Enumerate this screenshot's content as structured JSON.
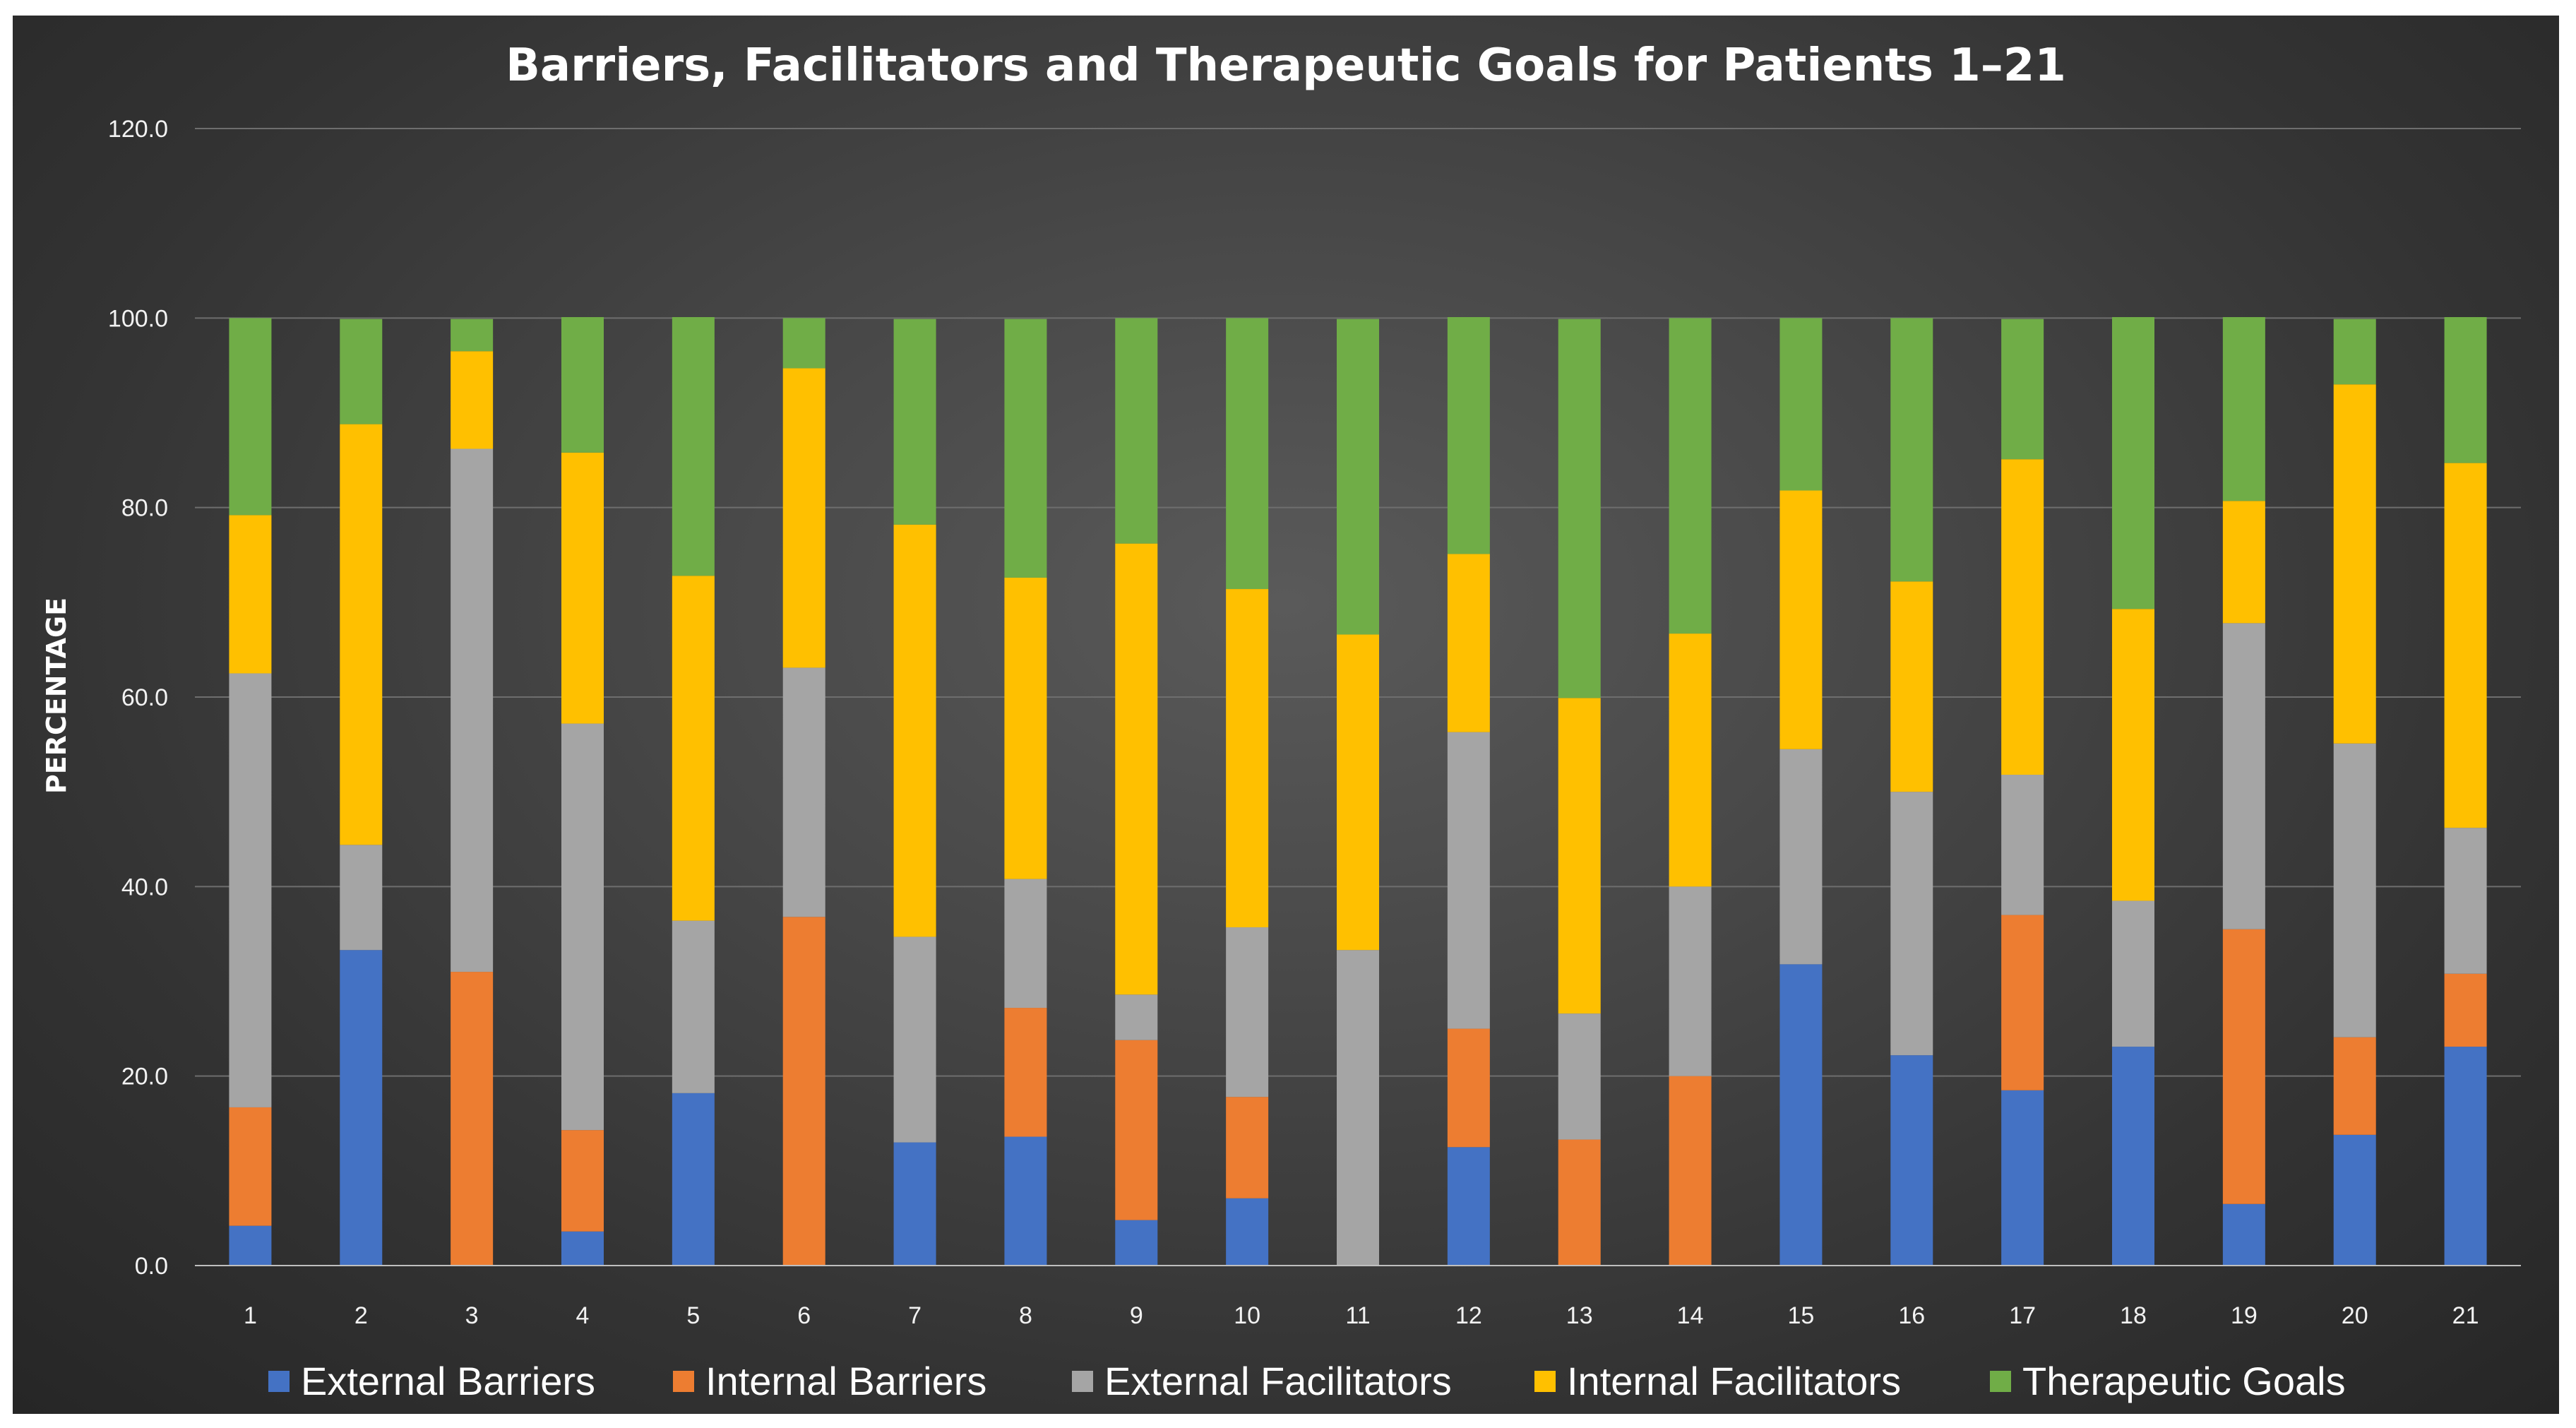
{
  "chart_data": {
    "type": "bar",
    "stacked": true,
    "title": "Barriers, Facilitators and Therapeutic Goals for Patients 1–21",
    "xlabel": "",
    "ylabel": "PERCENTAGE",
    "ylim": [
      0,
      120
    ],
    "yticks": [
      "0.0",
      "20.0",
      "40.0",
      "60.0",
      "80.0",
      "100.0",
      "120.0"
    ],
    "categories": [
      "1",
      "2",
      "3",
      "4",
      "5",
      "6",
      "7",
      "8",
      "9",
      "10",
      "11",
      "12",
      "13",
      "14",
      "15",
      "16",
      "17",
      "18",
      "19",
      "20",
      "21"
    ],
    "grid": true,
    "legend_position": "bottom",
    "series": [
      {
        "name": "External Barriers",
        "color": "#4472c4",
        "values": [
          4.2,
          33.3,
          0,
          3.6,
          18.2,
          0,
          13.0,
          13.6,
          4.8,
          7.1,
          0,
          12.5,
          0,
          0,
          31.8,
          22.2,
          18.5,
          23.1,
          6.5,
          13.8,
          23.1
        ]
      },
      {
        "name": "Internal Barriers",
        "color": "#ed7d31",
        "values": [
          12.5,
          0,
          31.0,
          10.7,
          0,
          36.8,
          0,
          13.6,
          19.0,
          10.7,
          0,
          12.5,
          13.3,
          20.0,
          0,
          0,
          18.5,
          0,
          29.0,
          10.3,
          7.7
        ]
      },
      {
        "name": "External Facilitators",
        "color": "#a5a5a5",
        "values": [
          45.8,
          11.1,
          55.2,
          42.9,
          18.2,
          26.3,
          21.7,
          13.6,
          4.8,
          17.9,
          33.3,
          31.3,
          13.3,
          20.0,
          22.7,
          27.8,
          14.8,
          15.4,
          32.3,
          31.0,
          15.4
        ]
      },
      {
        "name": "Internal Facilitators",
        "color": "#ffc000",
        "values": [
          16.7,
          44.4,
          10.3,
          28.6,
          36.4,
          31.6,
          43.5,
          31.8,
          47.6,
          35.7,
          33.3,
          18.8,
          33.3,
          26.7,
          27.3,
          22.2,
          33.3,
          30.8,
          12.9,
          37.9,
          38.5
        ]
      },
      {
        "name": "Therapeutic Goals",
        "color": "#70ad47",
        "values": [
          20.8,
          11.1,
          3.4,
          14.3,
          27.3,
          5.3,
          21.7,
          27.3,
          23.8,
          28.6,
          33.3,
          25.0,
          40.0,
          33.3,
          18.2,
          27.8,
          14.8,
          30.8,
          19.4,
          6.9,
          15.4
        ]
      }
    ]
  }
}
